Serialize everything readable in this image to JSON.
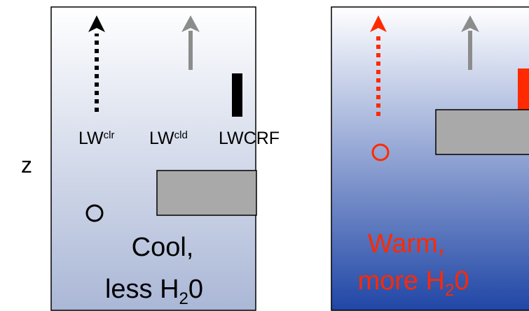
{
  "axis": {
    "z_label": "z"
  },
  "left_panel": {
    "labels": {
      "lw_clear_main": "LW",
      "lw_clear_sup": "clr",
      "lw_cloud_main": "LW",
      "lw_cloud_sup": "cld",
      "lwcrf": "LWCRF"
    },
    "caption_line1": "Cool,",
    "caption_line2_main": "less H",
    "caption_line2_sub": "2",
    "caption_line2_end": "0",
    "colors": {
      "clear_arrow": "#000000",
      "cloud_arrow": "#8c8c8c",
      "crf_bar": "#000000",
      "caption": "#000000",
      "parcel": "#000000"
    }
  },
  "right_panel": {
    "caption_line1": "Warm,",
    "caption_line2_main": "more H",
    "caption_line2_sub": "2",
    "caption_line2_end": "0",
    "colors": {
      "clear_arrow": "#ff2a00",
      "cloud_arrow": "#8c8c8c",
      "crf_bar": "#ff2a00",
      "caption": "#ff2a00",
      "parcel": "#ff2a00"
    }
  },
  "colors": {
    "cloud_fill": "#a9a9a9",
    "left_gradient_top": "#ffffff",
    "left_gradient_bottom": "#aab7d6",
    "right_gradient_top": "#ffffff",
    "right_gradient_bottom": "#2046a6"
  }
}
